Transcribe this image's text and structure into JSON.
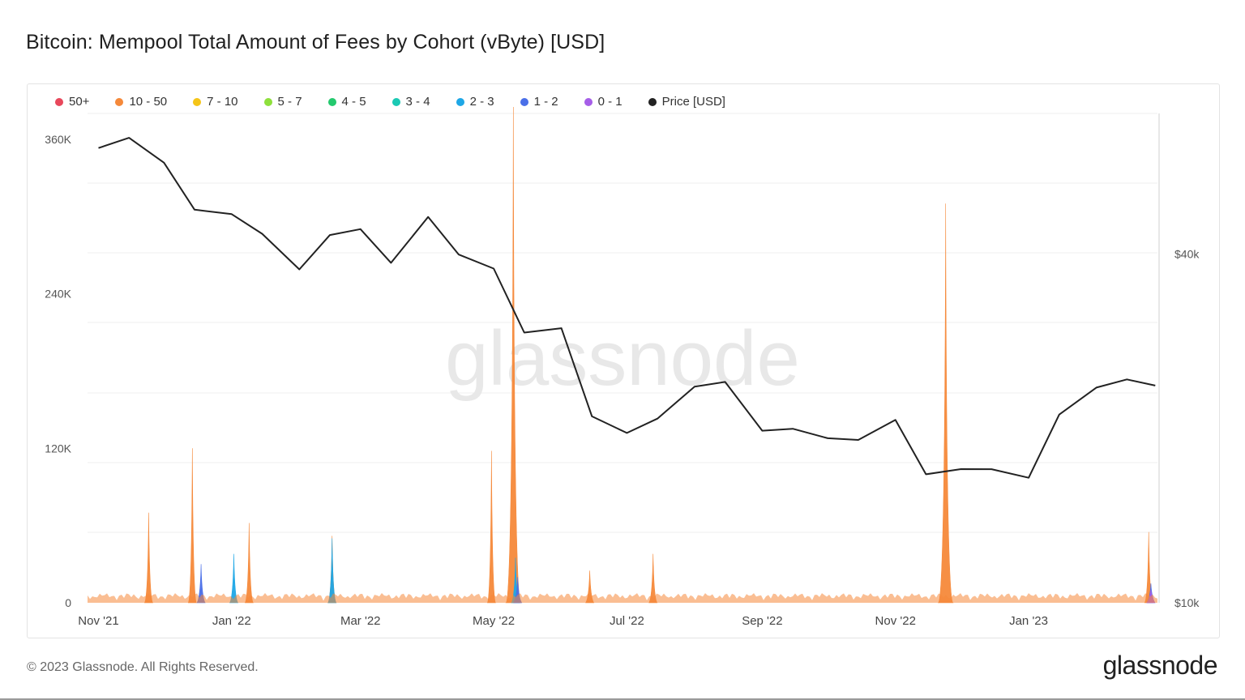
{
  "title": "Bitcoin: Mempool Total Amount of Fees by Cohort (vByte) [USD]",
  "watermark": "glassnode",
  "footer": {
    "copyright": "© 2023 Glassnode. All Rights Reserved.",
    "logo": "glassnode"
  },
  "legend": [
    {
      "label": "50+",
      "color": "#e8485b"
    },
    {
      "label": "10 - 50",
      "color": "#f5893a"
    },
    {
      "label": "7 - 10",
      "color": "#f5c518"
    },
    {
      "label": "5 - 7",
      "color": "#8ee03c"
    },
    {
      "label": "4 - 5",
      "color": "#24c96e"
    },
    {
      "label": "3 - 4",
      "color": "#1bc9b4"
    },
    {
      "label": "2 - 3",
      "color": "#1ea7e6"
    },
    {
      "label": "1 - 2",
      "color": "#4a6fe8"
    },
    {
      "label": "0 - 1",
      "color": "#a65ee8"
    },
    {
      "label": "Price [USD]",
      "color": "#222222"
    }
  ],
  "chart_data": {
    "type": "area",
    "x_ticks": [
      "Nov '21",
      "Jan '22",
      "Mar '22",
      "May '22",
      "Jul '22",
      "Sep '22",
      "Nov '22",
      "Jan '23"
    ],
    "y_left_ticks": [
      "0",
      "120K",
      "240K",
      "360K"
    ],
    "y_left_range": [
      0,
      380000
    ],
    "y_right_ticks": [
      "$10k",
      "$40k"
    ],
    "y_right_scale": "log",
    "y_right_range": [
      10000,
      70000
    ],
    "grid": true,
    "legend_position": "top",
    "price_series": {
      "name": "Price [USD]",
      "x": [
        "2021-11-01",
        "2021-11-15",
        "2021-12-01",
        "2021-12-15",
        "2022-01-01",
        "2022-01-15",
        "2022-02-01",
        "2022-02-15",
        "2022-03-01",
        "2022-03-15",
        "2022-04-01",
        "2022-04-15",
        "2022-05-01",
        "2022-05-15",
        "2022-06-01",
        "2022-06-15",
        "2022-07-01",
        "2022-07-15",
        "2022-08-01",
        "2022-08-15",
        "2022-09-01",
        "2022-09-15",
        "2022-10-01",
        "2022-10-15",
        "2022-11-01",
        "2022-11-15",
        "2022-12-01",
        "2022-12-15",
        "2023-01-01",
        "2023-01-15",
        "2023-02-01",
        "2023-02-15",
        "2023-02-28"
      ],
      "y": [
        61000,
        64000,
        57000,
        48000,
        47000,
        43000,
        38000,
        43000,
        44000,
        39000,
        46000,
        40000,
        38000,
        29000,
        30000,
        21000,
        19500,
        21000,
        23500,
        24000,
        20000,
        19800,
        19300,
        19200,
        20500,
        16800,
        17000,
        16900,
        16600,
        21000,
        23500,
        24500,
        23500
      ]
    },
    "fee_series": [
      {
        "name": "10 - 50",
        "x": [
          "2021-11-24",
          "2021-12-14",
          "2022-01-09",
          "2022-02-16",
          "2022-04-30",
          "2022-05-10",
          "2022-06-14",
          "2022-07-13",
          "2022-11-24",
          "2023-02-25"
        ],
        "values": [
          70000,
          120000,
          62000,
          52000,
          118000,
          385000,
          25000,
          38000,
          310000,
          55000
        ]
      },
      {
        "name": "2 - 3",
        "x": [
          "2022-01-02",
          "2022-02-16",
          "2022-05-11"
        ],
        "values": [
          38000,
          50000,
          35000
        ]
      },
      {
        "name": "1 - 2",
        "x": [
          "2021-12-18",
          "2022-05-12",
          "2023-02-26"
        ],
        "values": [
          30000,
          20000,
          15000
        ]
      },
      {
        "name": "0 - 1",
        "x": [
          "2023-02-26"
        ],
        "values": [
          10000
        ]
      }
    ]
  }
}
